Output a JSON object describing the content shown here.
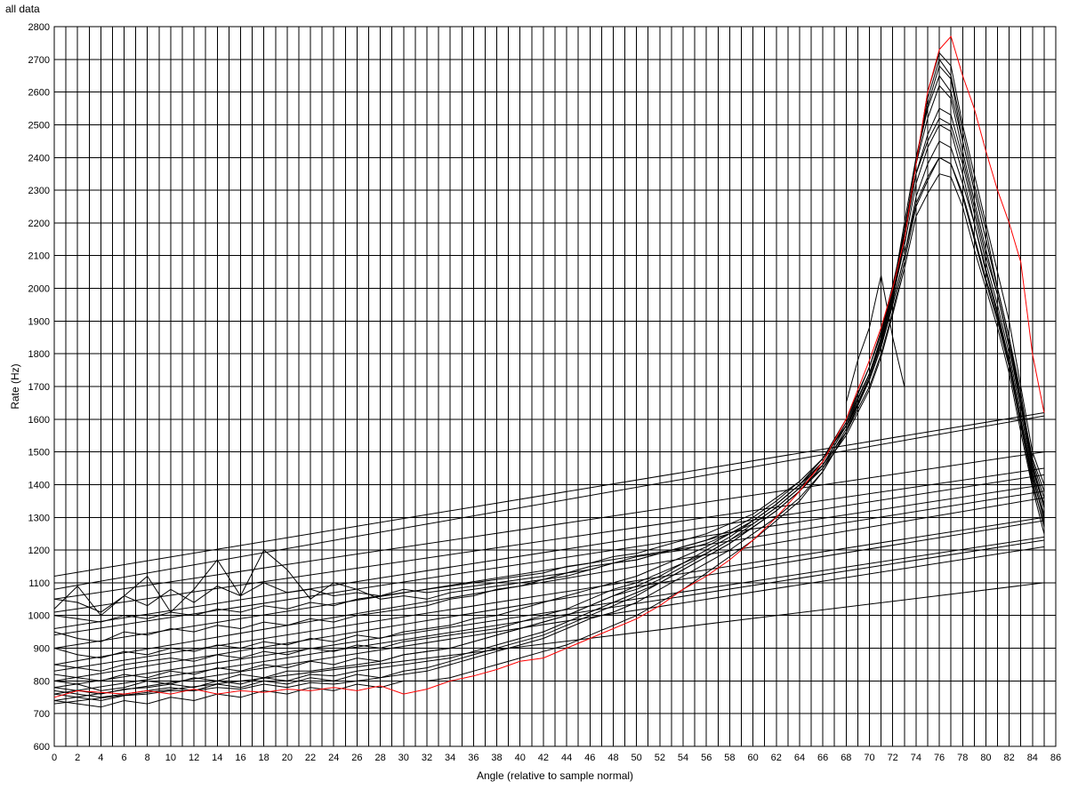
{
  "chart_data": {
    "type": "line",
    "title": "all data",
    "xlabel": "Angle (relative to sample normal)",
    "ylabel": "Rate (Hz)",
    "xlim": [
      0,
      86
    ],
    "ylim": [
      600,
      2800
    ],
    "x_ticks": [
      "0",
      "2",
      "4",
      "6",
      "8",
      "10",
      "12",
      "14",
      "16",
      "18",
      "20",
      "22",
      "24",
      "26",
      "28",
      "30",
      "32",
      "34",
      "36",
      "38",
      "40",
      "42",
      "44",
      "46",
      "48",
      "50",
      "52",
      "54",
      "56",
      "58",
      "60",
      "62",
      "64",
      "66",
      "68",
      "70",
      "72",
      "74",
      "76",
      "78",
      "80",
      "82",
      "84",
      "86"
    ],
    "y_ticks": [
      "600",
      "700",
      "800",
      "900",
      "1000",
      "1100",
      "1200",
      "1300",
      "1400",
      "1500",
      "1600",
      "1700",
      "1800",
      "1900",
      "2000",
      "2100",
      "2200",
      "2300",
      "2400",
      "2500",
      "2600",
      "2700",
      "2800"
    ],
    "grid": true,
    "x_grid_step": 1,
    "y_grid_step": 100,
    "colors": {
      "highlight": "#ff0000",
      "default": "#000000",
      "grid": "#000000"
    },
    "angle_sweep": {
      "x": [
        0,
        2,
        4,
        6,
        8,
        10,
        12,
        14,
        16,
        18,
        20,
        22,
        24,
        26,
        28,
        30,
        32,
        34,
        36,
        38,
        40,
        42,
        44,
        46,
        48,
        50,
        52,
        54,
        56,
        58,
        60,
        62,
        64,
        66,
        68,
        70,
        71,
        72,
        73,
        74,
        75,
        76,
        77,
        78,
        79,
        80,
        81,
        82,
        83,
        84,
        85
      ],
      "series": [
        {
          "color": "#ff0000",
          "values": [
            750,
            770,
            765,
            760,
            770,
            760,
            775,
            760,
            770,
            765,
            775,
            770,
            780,
            770,
            785,
            760,
            775,
            800,
            815,
            835,
            860,
            870,
            900,
            930,
            960,
            990,
            1030,
            1080,
            1120,
            1170,
            1230,
            1300,
            1380,
            1470,
            1600,
            1780,
            1880,
            2000,
            2150,
            2380,
            2600,
            2730,
            2770,
            2650,
            2550,
            2420,
            2300,
            2200,
            2080,
            1800,
            1620
          ]
        },
        {
          "color": "#000000",
          "values": [
            760,
            750,
            740,
            755,
            760,
            770,
            770,
            780,
            775,
            790,
            780,
            795,
            790,
            800,
            810,
            820,
            830,
            850,
            870,
            890,
            910,
            930,
            960,
            990,
            1010,
            1040,
            1080,
            1120,
            1160,
            1200,
            1250,
            1300,
            1360,
            1440,
            1560,
            1720,
            1820,
            1960,
            2150,
            2380,
            2600,
            2720,
            2680,
            2500,
            2350,
            2200,
            2050,
            1900,
            1700,
            1500,
            1400
          ]
        },
        {
          "color": "#000000",
          "values": [
            780,
            770,
            760,
            775,
            780,
            790,
            780,
            800,
            790,
            810,
            800,
            820,
            815,
            830,
            840,
            850,
            860,
            870,
            890,
            910,
            930,
            950,
            980,
            1010,
            1040,
            1070,
            1100,
            1140,
            1180,
            1220,
            1270,
            1320,
            1380,
            1460,
            1580,
            1740,
            1840,
            1980,
            2160,
            2380,
            2580,
            2700,
            2650,
            2480,
            2320,
            2180,
            2000,
            1850,
            1660,
            1480,
            1380
          ]
        },
        {
          "color": "#000000",
          "values": [
            800,
            790,
            770,
            780,
            800,
            790,
            810,
            800,
            820,
            810,
            830,
            830,
            840,
            850,
            860,
            880,
            890,
            900,
            920,
            940,
            960,
            980,
            1000,
            1030,
            1060,
            1090,
            1120,
            1160,
            1190,
            1230,
            1280,
            1330,
            1390,
            1470,
            1590,
            1760,
            1860,
            2000,
            2170,
            2390,
            2550,
            2650,
            2600,
            2450,
            2300,
            2150,
            2000,
            1850,
            1650,
            1470,
            1360
          ]
        },
        {
          "color": "#000000",
          "values": [
            850,
            840,
            830,
            850,
            860,
            870,
            860,
            880,
            870,
            890,
            880,
            900,
            890,
            910,
            900,
            920,
            930,
            940,
            950,
            960,
            980,
            1000,
            1020,
            1050,
            1080,
            1100,
            1130,
            1160,
            1200,
            1240,
            1290,
            1340,
            1400,
            1470,
            1590,
            1740,
            1840,
            1980,
            2150,
            2350,
            2470,
            2550,
            2530,
            2400,
            2250,
            2100,
            1980,
            1820,
            1640,
            1450,
            1330
          ]
        },
        {
          "color": "#000000",
          "values": [
            950,
            930,
            920,
            950,
            940,
            960,
            950,
            970,
            960,
            980,
            970,
            990,
            980,
            1000,
            1010,
            1020,
            1030,
            1050,
            1060,
            1080,
            1090,
            1110,
            1120,
            1140,
            1160,
            1170,
            1190,
            1210,
            1230,
            1260,
            1300,
            1350,
            1410,
            1480,
            1580,
            1720,
            1820,
            1950,
            2100,
            2280,
            2380,
            2450,
            2430,
            2320,
            2200,
            2050,
            1920,
            1780,
            1600,
            1420,
            1300
          ]
        },
        {
          "color": "#000000",
          "values": [
            1050,
            1040,
            1010,
            1060,
            1030,
            1080,
            1040,
            1090,
            1060,
            1100,
            1070,
            1080,
            1060,
            1070,
            1060,
            1080,
            1070,
            1080,
            1090,
            1100,
            1110,
            1120,
            1130,
            1150,
            1160,
            1170,
            1190,
            1210,
            1230,
            1250,
            1290,
            1340,
            1400,
            1460,
            1560,
            1700,
            1800,
            1930,
            2080,
            2250,
            2330,
            2400,
            2380,
            2280,
            2150,
            2020,
            1900,
            1760,
            1580,
            1400,
            1280
          ]
        },
        {
          "color": "#000000",
          "values": [
            1020,
            1090,
            1000,
            1060,
            1120,
            1010,
            1080,
            1170,
            1060,
            1200,
            1140,
            1050,
            1100,
            1080,
            1050,
            1060,
            1050,
            1070,
            1080,
            1090,
            1100,
            1110,
            1130,
            1140,
            1160,
            1180,
            1190,
            1200,
            1220,
            1250,
            1280,
            1330,
            1390,
            1450,
            1550,
            1690,
            1790,
            1920,
            2060,
            2220,
            2290,
            2350,
            2340,
            2250,
            2120,
            2000,
            1880,
            1740,
            1560,
            1390,
            1250
          ]
        },
        {
          "color": "#000000",
          "values": [
            740,
            730,
            720,
            740,
            730,
            750,
            740,
            760,
            750,
            770,
            760,
            780,
            770,
            790,
            780,
            800,
            800,
            810,
            830,
            850,
            870,
            890,
            910,
            940,
            970,
            1000,
            1040,
            1080,
            1130,
            1180,
            1230,
            1290,
            1350,
            1440,
            1560,
            1730,
            1840,
            1990,
            2200,
            2400,
            2560,
            2680,
            2640,
            2450,
            2300,
            2150,
            2000,
            1850,
            1680,
            1460,
            1340
          ]
        },
        {
          "color": "#000000",
          "values": [
            900,
            880,
            870,
            890,
            880,
            900,
            890,
            910,
            900,
            920,
            910,
            930,
            920,
            940,
            930,
            950,
            960,
            970,
            990,
            1000,
            1020,
            1040,
            1060,
            1080,
            1100,
            1120,
            1150,
            1180,
            1210,
            1250,
            1290,
            1340,
            1400,
            1480,
            1600,
            1760,
            1870,
            2010,
            2170,
            2350,
            2450,
            2520,
            2500,
            2380,
            2230,
            2080,
            1950,
            1800,
            1620,
            1440,
            1310
          ]
        },
        {
          "color": "#000000",
          "values": [
            820,
            810,
            800,
            820,
            810,
            830,
            820,
            840,
            830,
            850,
            840,
            860,
            850,
            870,
            860,
            880,
            890,
            900,
            920,
            940,
            960,
            980,
            1000,
            1030,
            1060,
            1080,
            1110,
            1150,
            1190,
            1230,
            1270,
            1320,
            1380,
            1450,
            1570,
            1730,
            1830,
            1970,
            2130,
            2320,
            2430,
            2500,
            2480,
            2350,
            2200,
            2060,
            1930,
            1780,
            1600,
            1430,
            1290
          ]
        },
        {
          "color": "#000000",
          "values": [
            770,
            760,
            750,
            760,
            770,
            780,
            770,
            790,
            780,
            800,
            790,
            810,
            800,
            820,
            810,
            830,
            840,
            860,
            880,
            900,
            920,
            940,
            970,
            1000,
            1030,
            1060,
            1100,
            1140,
            1180,
            1220,
            1270,
            1320,
            1380,
            1460,
            1580,
            1740,
            1850,
            2000,
            2180,
            2380,
            2520,
            2620,
            2580,
            2420,
            2270,
            2120,
            1980,
            1830,
            1650,
            1460,
            1330
          ]
        },
        {
          "color": "#000000",
          "values": [
            1000,
            990,
            980,
            1000,
            990,
            1010,
            1000,
            1020,
            1010,
            1030,
            1020,
            1040,
            1030,
            1050,
            1060,
            1070,
            1080,
            1090,
            1100,
            1110,
            1120,
            1130,
            1150,
            1160,
            1180,
            1190,
            1210,
            1230,
            1250,
            1280,
            1310,
            1360,
            1410,
            1480,
            1580,
            1720,
            1820,
            1950,
            2100,
            2260,
            2340,
            2400,
            2380,
            2290,
            2160,
            2030,
            1910,
            1770,
            1590,
            1410,
            1270
          ]
        }
      ]
    },
    "linear_fits": {
      "x": [
        0,
        85
      ],
      "series": [
        {
          "color": "#000000",
          "values": [
            1120,
            1620
          ]
        },
        {
          "color": "#000000",
          "values": [
            1080,
            1610
          ]
        },
        {
          "color": "#000000",
          "values": [
            1050,
            1500
          ]
        },
        {
          "color": "#000000",
          "values": [
            1010,
            1450
          ]
        },
        {
          "color": "#000000",
          "values": [
            960,
            1430
          ]
        },
        {
          "color": "#000000",
          "values": [
            940,
            1400
          ]
        },
        {
          "color": "#000000",
          "values": [
            900,
            1380
          ]
        },
        {
          "color": "#000000",
          "values": [
            850,
            1360
          ]
        },
        {
          "color": "#000000",
          "values": [
            830,
            1300
          ]
        },
        {
          "color": "#000000",
          "values": [
            800,
            1290
          ]
        },
        {
          "color": "#000000",
          "values": [
            780,
            1240
          ]
        },
        {
          "color": "#000000",
          "values": [
            760,
            1230
          ]
        },
        {
          "color": "#000000",
          "values": [
            740,
            1210
          ]
        },
        {
          "color": "#000000",
          "values": [
            730,
            1100
          ]
        }
      ]
    },
    "spike": {
      "x": [
        68,
        69,
        70,
        71,
        72,
        73
      ],
      "values": [
        1650,
        1780,
        1880,
        2040,
        1850,
        1700
      ]
    }
  }
}
